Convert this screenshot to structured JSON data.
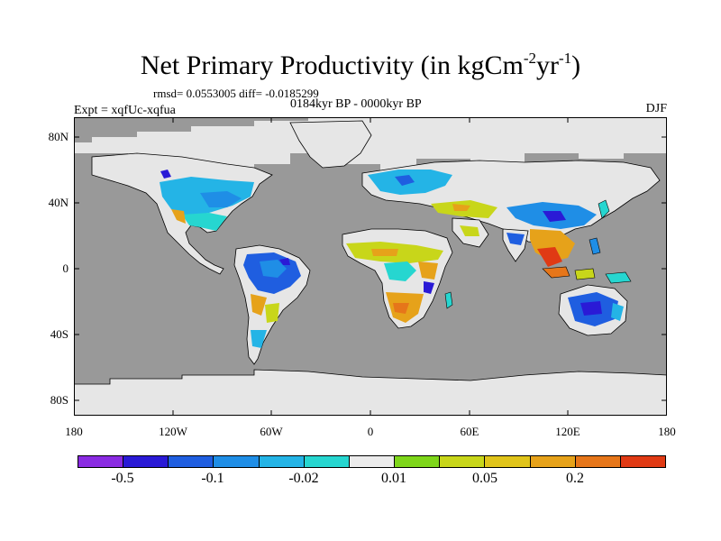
{
  "title": {
    "main": "Net Primary Productivity (in kgCm",
    "exp1": "-2",
    "mid": "yr",
    "exp2": "-1",
    "close": ")"
  },
  "stats": "rmsd= 0.0553005 diff= -0.0185299",
  "period": "0184kyr BP - 0000kyr BP",
  "experiment": "Expt = xqfUc-xqfua",
  "season": "DJF",
  "lat_labels": [
    "80N",
    "40N",
    "0",
    "40S",
    "80S"
  ],
  "lon_labels": [
    "180",
    "120W",
    "60W",
    "0",
    "60E",
    "120E",
    "180"
  ],
  "colors": {
    "ocean": "#999999",
    "land_nochange": "#e6e6e6",
    "coast": "#000000"
  },
  "colorbar": {
    "colors": [
      "#8a2be2",
      "#2a1ad6",
      "#1f5ee0",
      "#1f8ee6",
      "#24b4e6",
      "#26d6d0",
      "#ebebeb",
      "#7ed61a",
      "#c8d61a",
      "#e0c41a",
      "#e6a21a",
      "#e6761a",
      "#e03a14"
    ],
    "labels": [
      "-0.5",
      "-0.1",
      "-0.02",
      "0.01",
      "0.05",
      "0.2"
    ]
  },
  "map_regions": {
    "north_america": "mixed small negative change",
    "amazon": "large negative change",
    "africa_sahel": "positive change",
    "southern_africa": "positive change",
    "southeast_asia": "strong positive change",
    "australia": "negative change",
    "europe": "negative change",
    "antarctica": "no change"
  }
}
